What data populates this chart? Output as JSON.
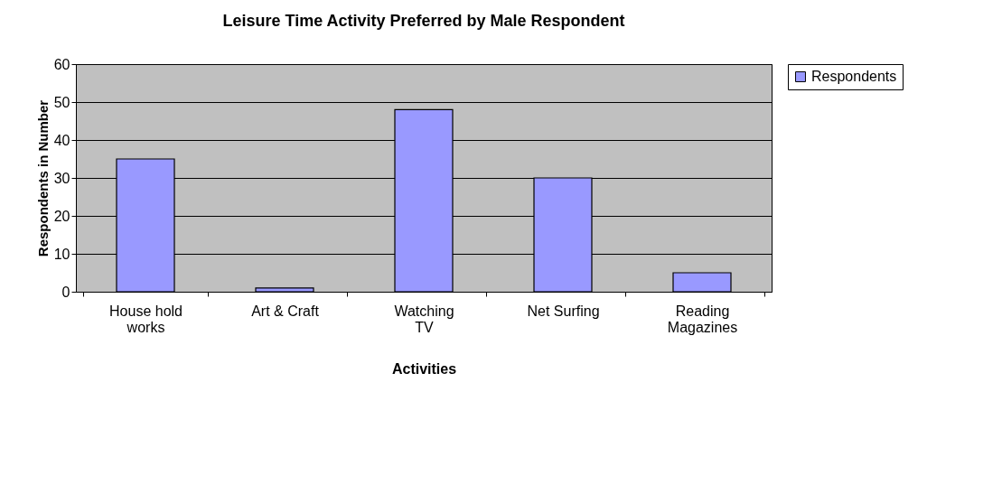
{
  "chart_data": {
    "type": "bar",
    "title": "Leisure Time Activity Preferred by Male Respondent",
    "xlabel": "Activities",
    "ylabel": "Respondents in Number",
    "categories": [
      "House hold\nworks",
      "Art & Craft",
      "Watching\nTV",
      "Net Surfing",
      "Reading\nMagazines"
    ],
    "series": [
      {
        "name": "Respondents",
        "color": "#9999ff",
        "values": [
          35,
          1,
          48,
          30,
          5
        ]
      }
    ],
    "ylim": [
      0,
      60
    ],
    "yticks": [
      0,
      10,
      20,
      30,
      40,
      50,
      60
    ],
    "grid": "y",
    "legend": "right"
  }
}
